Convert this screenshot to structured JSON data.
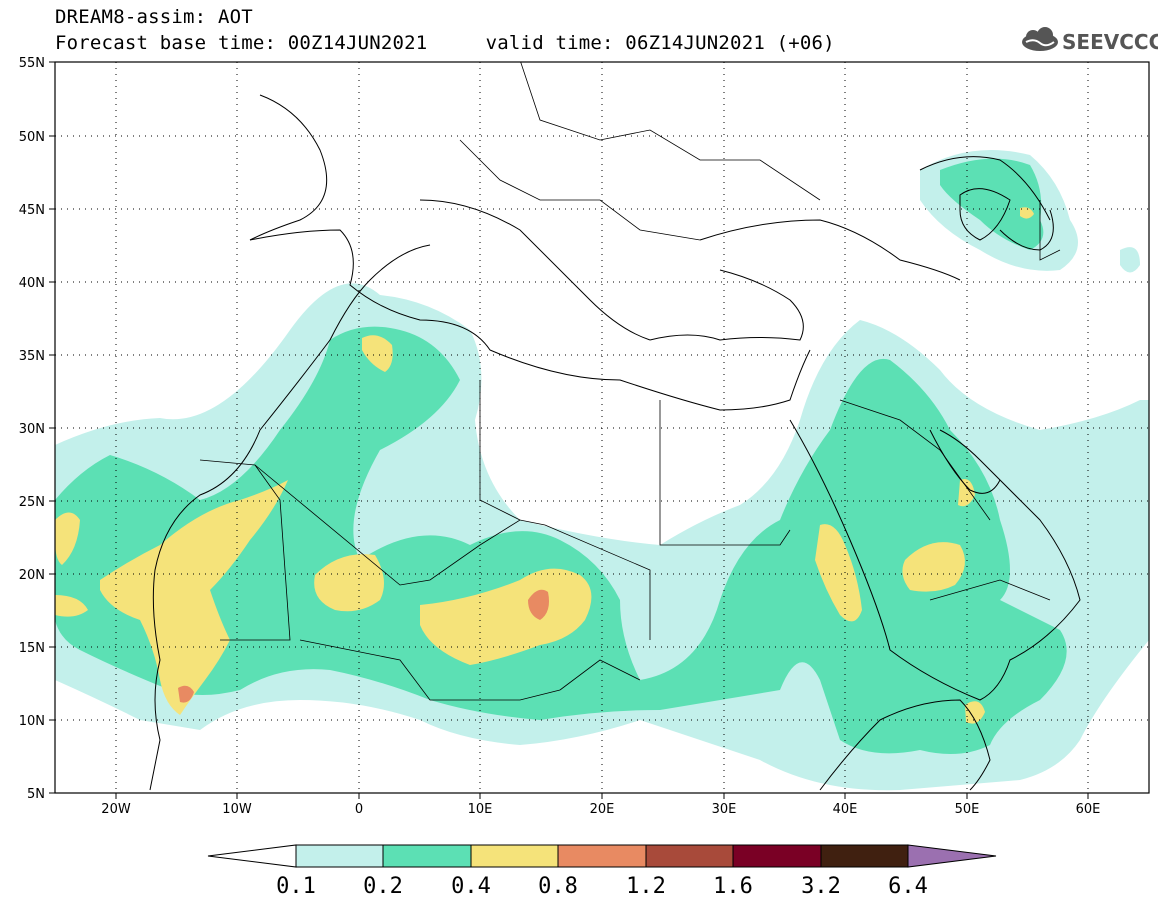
{
  "header": {
    "title_line1": "DREAM8-assim: AOT",
    "title_line2": "Forecast base time: 00Z14JUN2021     valid time: 06Z14JUN2021 (+06)",
    "logo_text": "SEEVCCC",
    "logo_icon": "cloud-icon"
  },
  "map": {
    "projection": "lat-lon",
    "lon_range": [
      -25,
      65
    ],
    "lat_range": [
      5,
      55
    ],
    "lat_ticks": [
      "55N",
      "50N",
      "45N",
      "40N",
      "35N",
      "30N",
      "25N",
      "20N",
      "15N",
      "10N",
      "5N"
    ],
    "lon_ticks": [
      "20W",
      "10W",
      "0",
      "10E",
      "20E",
      "30E",
      "40E",
      "50E",
      "60E"
    ],
    "grid": "dotted"
  },
  "colorbar": {
    "labels": [
      "0.1",
      "0.2",
      "0.4",
      "0.8",
      "1.2",
      "1.6",
      "3.2",
      "6.4"
    ],
    "colors": [
      "#ffffff",
      "#c3f0eb",
      "#5ce0b4",
      "#f5e37a",
      "#e88a62",
      "#a84a3a",
      "#7a0025",
      "#402010",
      "#9b70b0"
    ]
  }
}
